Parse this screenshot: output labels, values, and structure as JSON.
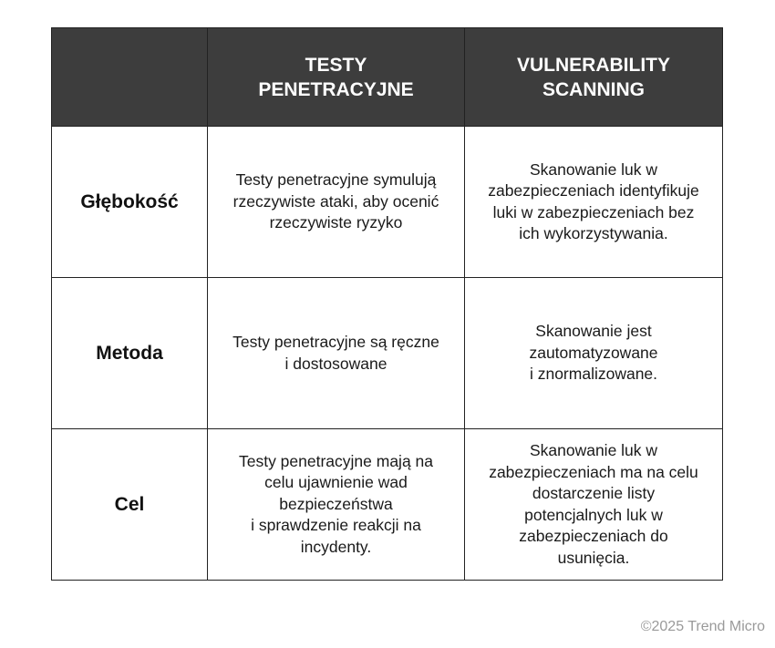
{
  "table": {
    "headers": {
      "corner": "",
      "col1": "TESTY\nPENETRACYJNE",
      "col2": "VULNERABILITY\nSCANNING"
    },
    "rows": [
      {
        "label": "Głębokość",
        "pentest": "Testy penetracyjne symulują\nrzeczywiste ataki, aby ocenić\nrzeczywiste ryzyko",
        "scanning": "Skanowanie luk w\nzabezpieczeniach identyfikuje\nluki w zabezpieczeniach bez\nich wykorzystywania."
      },
      {
        "label": "Metoda",
        "pentest": "Testy penetracyjne są ręczne\ni dostosowane",
        "scanning": "Skanowanie jest\nzautomatyzowane\ni znormalizowane."
      },
      {
        "label": "Cel",
        "pentest": "Testy penetracyjne mają na\ncelu ujawnienie wad\nbezpieczeństwa\ni sprawdzenie reakcji na\nincydenty.",
        "scanning": "Skanowanie luk w\nzabezpieczeniach ma na celu\ndostarczenie listy\npotencjalnych luk w\nzabezpieczeniach do\nusunięcia."
      }
    ]
  },
  "footer": {
    "copyright": "©2025 Trend Micro"
  }
}
